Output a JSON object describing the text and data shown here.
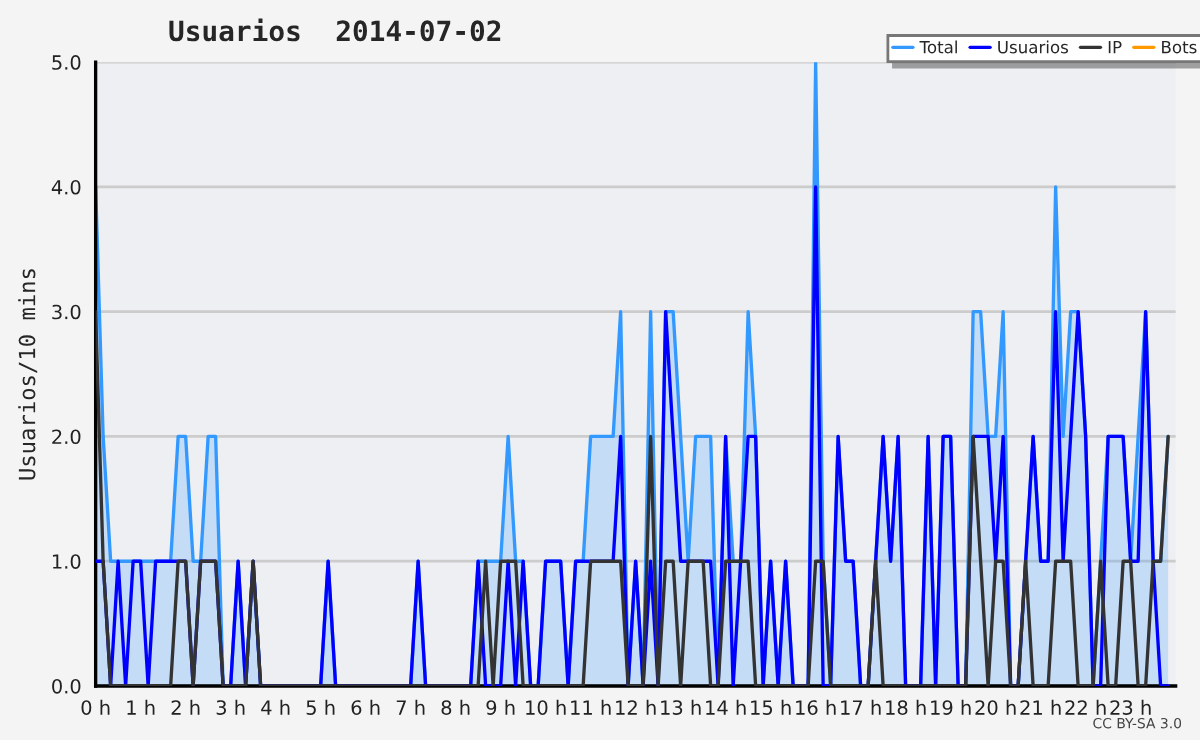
{
  "chart_data": {
    "type": "line",
    "title": "Usuarios  2014-07-02",
    "ylabel": "Usuarios/10 mins",
    "x": [
      0,
      0.1667,
      0.3333,
      0.5,
      0.6667,
      0.8333,
      1,
      1.1667,
      1.3333,
      1.5,
      1.6667,
      1.8333,
      2,
      2.1667,
      2.3333,
      2.5,
      2.6667,
      2.8333,
      3,
      3.1667,
      3.3333,
      3.5,
      3.6667,
      3.8333,
      4,
      4.1667,
      4.3333,
      4.5,
      4.6667,
      4.8333,
      5,
      5.1667,
      5.3333,
      5.5,
      5.6667,
      5.8333,
      6,
      6.1667,
      6.3333,
      6.5,
      6.6667,
      6.8333,
      7,
      7.1667,
      7.3333,
      7.5,
      7.6667,
      7.8333,
      8,
      8.1667,
      8.3333,
      8.5,
      8.6667,
      8.8333,
      9,
      9.1667,
      9.3333,
      9.5,
      9.6667,
      9.8333,
      10,
      10.1667,
      10.3333,
      10.5,
      10.6667,
      10.8333,
      11,
      11.1667,
      11.3333,
      11.5,
      11.6667,
      11.8333,
      12,
      12.1667,
      12.3333,
      12.5,
      12.6667,
      12.8333,
      13,
      13.1667,
      13.3333,
      13.5,
      13.6667,
      13.8333,
      14,
      14.1667,
      14.3333,
      14.5,
      14.6667,
      14.8333,
      15,
      15.1667,
      15.3333,
      15.5,
      15.6667,
      15.8333,
      16,
      16.1667,
      16.3333,
      16.5,
      16.6667,
      16.8333,
      17,
      17.1667,
      17.3333,
      17.5,
      17.6667,
      17.8333,
      18,
      18.1667,
      18.3333,
      18.5,
      18.6667,
      18.8333,
      19,
      19.1667,
      19.3333,
      19.5,
      19.6667,
      19.8333,
      20,
      20.1667,
      20.3333,
      20.5,
      20.6667,
      20.8333,
      21,
      21.1667,
      21.3333,
      21.5,
      21.6667,
      21.8333,
      22,
      22.1667,
      22.3333,
      22.5,
      22.6667,
      22.8333,
      23,
      23.1667,
      23.3333,
      23.5,
      23.6667,
      23.8333
    ],
    "series": [
      {
        "name": "Total",
        "type": "area",
        "color": "#3399ff",
        "values": [
          4,
          2,
          1,
          1,
          1,
          1,
          1,
          1,
          1,
          1,
          1,
          2,
          2,
          1,
          1,
          2,
          2,
          0,
          0,
          1,
          0,
          1,
          0,
          0,
          0,
          0,
          0,
          0,
          0,
          0,
          0,
          1,
          0,
          0,
          0,
          0,
          0,
          0,
          0,
          0,
          0,
          0,
          0,
          1,
          0,
          0,
          0,
          0,
          0,
          0,
          0,
          1,
          1,
          1,
          1,
          2,
          1,
          1,
          0,
          0,
          1,
          1,
          1,
          0,
          1,
          1,
          2,
          2,
          2,
          2,
          3,
          0,
          1,
          0,
          3,
          0,
          3,
          3,
          2,
          1,
          2,
          2,
          2,
          0,
          2,
          1,
          1,
          3,
          2,
          0,
          1,
          0,
          1,
          0,
          0,
          0,
          5,
          1,
          0,
          2,
          1,
          1,
          0,
          0,
          1,
          2,
          1,
          2,
          0,
          0,
          0,
          2,
          0,
          2,
          2,
          0,
          0,
          3,
          3,
          2,
          2,
          3,
          0,
          0,
          1,
          2,
          1,
          1,
          4,
          2,
          3,
          3,
          2,
          0,
          1,
          2,
          2,
          2,
          1,
          2,
          3,
          1,
          1,
          2
        ]
      },
      {
        "name": "Usuarios",
        "color": "#0000ff",
        "values": [
          1,
          1,
          0,
          1,
          0,
          1,
          1,
          0,
          1,
          1,
          1,
          1,
          1,
          0,
          1,
          1,
          1,
          0,
          0,
          1,
          0,
          1,
          0,
          0,
          0,
          0,
          0,
          0,
          0,
          0,
          0,
          1,
          0,
          0,
          0,
          0,
          0,
          0,
          0,
          0,
          0,
          0,
          0,
          1,
          0,
          0,
          0,
          0,
          0,
          0,
          0,
          1,
          0,
          0,
          0,
          1,
          0,
          1,
          0,
          0,
          1,
          1,
          1,
          0,
          1,
          1,
          1,
          1,
          1,
          1,
          2,
          0,
          1,
          0,
          1,
          0,
          3,
          2,
          1,
          1,
          1,
          1,
          1,
          0,
          2,
          0,
          1,
          2,
          2,
          0,
          1,
          0,
          1,
          0,
          0,
          0,
          4,
          0,
          0,
          2,
          1,
          1,
          0,
          0,
          1,
          2,
          1,
          2,
          0,
          0,
          0,
          2,
          0,
          2,
          2,
          0,
          0,
          2,
          2,
          2,
          1,
          2,
          0,
          0,
          1,
          2,
          1,
          1,
          3,
          1,
          2,
          3,
          2,
          0,
          0,
          2,
          2,
          2,
          1,
          1,
          3,
          1,
          0,
          0
        ]
      },
      {
        "name": "IP",
        "color": "#333333",
        "values": [
          3,
          1,
          0,
          0,
          0,
          0,
          0,
          0,
          0,
          0,
          0,
          1,
          1,
          0,
          1,
          1,
          1,
          0,
          0,
          0,
          0,
          1,
          0,
          0,
          0,
          0,
          0,
          0,
          0,
          0,
          0,
          0,
          0,
          0,
          0,
          0,
          0,
          0,
          0,
          0,
          0,
          0,
          0,
          0,
          0,
          0,
          0,
          0,
          0,
          0,
          0,
          0,
          1,
          0,
          1,
          1,
          1,
          0,
          0,
          0,
          0,
          0,
          0,
          0,
          0,
          0,
          1,
          1,
          1,
          1,
          1,
          0,
          0,
          0,
          2,
          0,
          1,
          1,
          0,
          1,
          1,
          1,
          0,
          0,
          1,
          1,
          1,
          1,
          0,
          0,
          0,
          0,
          0,
          0,
          0,
          0,
          1,
          1,
          0,
          0,
          0,
          0,
          0,
          0,
          1,
          0,
          0,
          0,
          0,
          0,
          0,
          0,
          0,
          0,
          0,
          0,
          0,
          2,
          1,
          0,
          1,
          1,
          0,
          0,
          1,
          0,
          0,
          0,
          1,
          1,
          1,
          0,
          0,
          0,
          1,
          0,
          0,
          1,
          1,
          0,
          0,
          1,
          1,
          2
        ]
      },
      {
        "name": "Bots",
        "color": "#ff9900",
        "values": [
          null,
          null,
          null,
          null,
          null,
          null,
          null,
          null,
          null,
          null,
          null,
          null,
          null,
          null,
          null,
          null,
          null,
          null,
          null,
          null,
          null,
          null,
          null,
          null,
          null,
          null,
          null,
          null,
          null,
          null,
          null,
          null,
          null,
          null,
          null,
          null,
          null,
          null,
          null,
          null,
          null,
          null,
          null,
          null,
          null,
          null,
          null,
          null,
          null,
          null,
          null,
          null,
          null,
          null,
          null,
          null,
          null,
          null,
          null,
          null,
          null,
          null,
          null,
          null,
          null,
          null,
          null,
          null,
          null,
          null,
          null,
          null,
          null,
          null,
          null,
          null,
          null,
          null,
          null,
          null,
          null,
          null,
          null,
          null,
          null,
          null,
          null,
          null,
          null,
          null,
          null,
          null,
          null,
          null,
          null,
          null,
          null,
          null,
          null,
          null,
          null,
          null,
          null,
          null,
          null,
          null,
          null,
          null,
          null,
          null,
          null,
          null,
          null,
          null,
          null,
          null,
          null,
          null,
          null,
          null,
          null,
          null,
          null,
          null,
          null,
          null,
          null,
          null,
          null,
          null,
          null,
          null,
          null,
          null,
          null,
          null,
          null,
          null,
          null,
          null,
          null,
          null,
          null,
          null
        ]
      }
    ],
    "xlim": [
      0,
      24
    ],
    "xticks": [
      {
        "value": 0,
        "label": "0 h"
      },
      {
        "value": 1,
        "label": "1 h"
      },
      {
        "value": 2,
        "label": "2 h"
      },
      {
        "value": 3,
        "label": "3 h"
      },
      {
        "value": 4,
        "label": "4 h"
      },
      {
        "value": 5,
        "label": "5 h"
      },
      {
        "value": 6,
        "label": "6 h"
      },
      {
        "value": 7,
        "label": "7 h"
      },
      {
        "value": 8,
        "label": "8 h"
      },
      {
        "value": 9,
        "label": "9 h"
      },
      {
        "value": 10,
        "label": "10 h"
      },
      {
        "value": 11,
        "label": "11 h"
      },
      {
        "value": 12,
        "label": "12 h"
      },
      {
        "value": 13,
        "label": "13 h"
      },
      {
        "value": 14,
        "label": "14 h"
      },
      {
        "value": 15,
        "label": "15 h"
      },
      {
        "value": 16,
        "label": "16 h"
      },
      {
        "value": 17,
        "label": "17 h"
      },
      {
        "value": 18,
        "label": "18 h"
      },
      {
        "value": 19,
        "label": "19 h"
      },
      {
        "value": 20,
        "label": "20 h"
      },
      {
        "value": 21,
        "label": "21 h"
      },
      {
        "value": 22,
        "label": "22 h"
      },
      {
        "value": 23,
        "label": "23 h"
      }
    ],
    "ylim": [
      0,
      5
    ],
    "yticks": [
      {
        "value": 0,
        "label": "0.0"
      },
      {
        "value": 1,
        "label": "1.0"
      },
      {
        "value": 2,
        "label": "2.0"
      },
      {
        "value": 3,
        "label": "3.0"
      },
      {
        "value": 4,
        "label": "4.0"
      },
      {
        "value": 5,
        "label": "5.0"
      }
    ],
    "grid": "y",
    "legend": "top right",
    "marker": "none",
    "line_style": "solid",
    "annotations": [
      "CC BY-SA 3.0"
    ]
  }
}
